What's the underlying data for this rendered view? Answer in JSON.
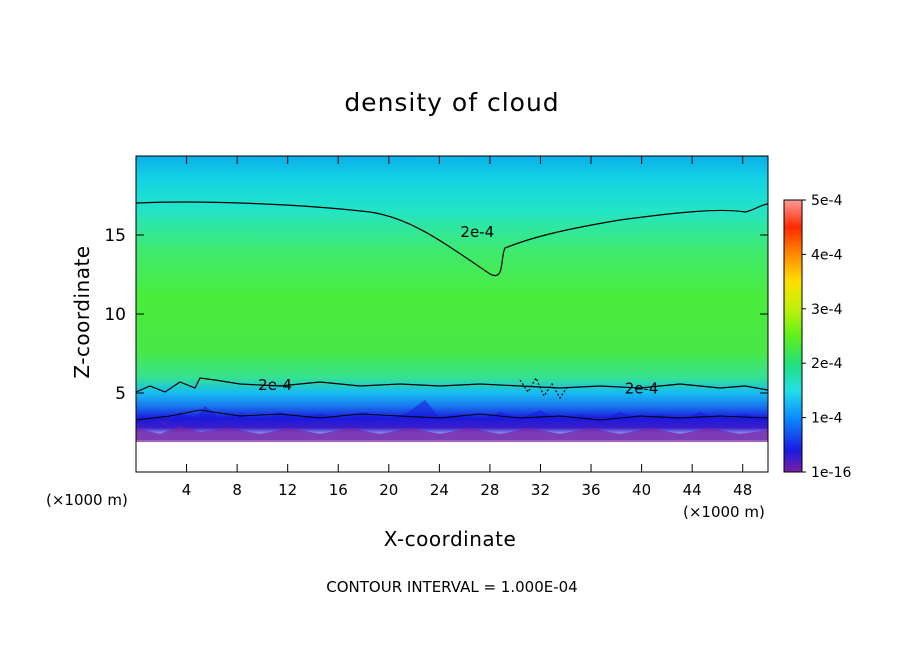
{
  "chart_data": {
    "type": "heatmap",
    "title": "density of cloud",
    "xlabel": "X-coordinate",
    "ylabel": "Z-coordinate",
    "x_unit": "(×1000 m)",
    "xlim": [
      0,
      50
    ],
    "ylim": [
      0,
      20
    ],
    "x_ticks": [
      4,
      8,
      12,
      16,
      20,
      24,
      28,
      32,
      36,
      40,
      44,
      48
    ],
    "y_ticks": [
      5,
      10,
      15
    ],
    "colorbar": {
      "ticks": [
        "1e-16",
        "1e-4",
        "2e-4",
        "3e-4",
        "4e-4",
        "5e-4"
      ],
      "range": [
        1e-16,
        0.0005
      ],
      "colors": [
        "#7a1fa0",
        "#1a1ae0",
        "#0a8cff",
        "#22e0e6",
        "#22e07a",
        "#5ef01a",
        "#c0f00a",
        "#ffe000",
        "#ff8a00",
        "#ff2a00",
        "#ff9a9a"
      ]
    },
    "contour_labels": [
      {
        "text": "2e-4",
        "x": 27,
        "z": 15.2
      },
      {
        "text": "2e-4",
        "x": 11,
        "z": 5.5
      },
      {
        "text": "2e-4",
        "x": 40,
        "z": 5.3
      }
    ],
    "contour_interval_text": "CONTOUR INTERVAL = 1.000E-04"
  }
}
